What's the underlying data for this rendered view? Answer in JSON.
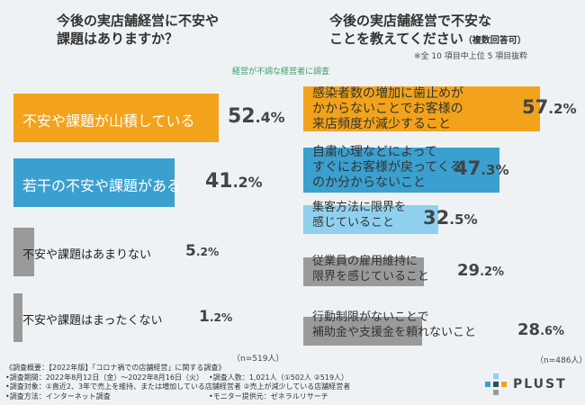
{
  "left": {
    "title_line1": "今後の実店舗経営に不安や",
    "title_line2": "課題はありますか？",
    "filter_note": "経営が不調な経営者に調査",
    "n_label": "（n=519人）"
  },
  "right": {
    "title_line1": "今後の実店舗経営で不安な",
    "title_line2": "ことを教えてください",
    "multi_note": "（複数回答可）",
    "sub_note": "※全 10 項目中上位 5 項目抜粋",
    "n_label": "（n=486人）"
  },
  "chart_data": [
    {
      "type": "bar",
      "orientation": "horizontal",
      "title": "今後の実店舗経営に不安や課題はありますか？",
      "unit": "%",
      "categories": [
        "不安や課題が山積している",
        "若干の不安や課題がある",
        "不安や課題はあまりない",
        "不安や課題はまったくない"
      ],
      "values": [
        52.4,
        41.2,
        5.2,
        1.2
      ],
      "value_labels": [
        {
          "int": "52",
          "dec": ".4%"
        },
        {
          "int": "41",
          "dec": ".2%"
        },
        {
          "int": "5",
          "dec": ".2%"
        },
        {
          "int": "1",
          "dec": ".2%"
        }
      ],
      "colors": [
        "#f2a31b",
        "#3aa0cf",
        "#9a9a9a",
        "#9a9a9a"
      ]
    },
    {
      "type": "bar",
      "orientation": "horizontal",
      "title": "今後の実店舗経営で不安なことを教えてください（複数回答可）",
      "unit": "%",
      "categories": [
        [
          "感染者数の増加に歯止めが",
          "かからないことでお客様の",
          "来店頻度が減少すること"
        ],
        [
          "自粛心理などによって",
          "すぐにお客様が戻ってくる",
          "のか分からないこと"
        ],
        [
          "集客方法に限界を",
          "感じていること"
        ],
        [
          "従業員の雇用維持に",
          "限界を感じていること"
        ],
        [
          "行動制限がないことで",
          "補助金や支援金を頼れないこと"
        ]
      ],
      "values": [
        57.2,
        47.3,
        32.5,
        29.2,
        28.6
      ],
      "value_labels": [
        {
          "int": "57",
          "dec": ".2%"
        },
        {
          "int": "47",
          "dec": ".3%"
        },
        {
          "int": "32",
          "dec": ".5%"
        },
        {
          "int": "29",
          "dec": ".2%"
        },
        {
          "int": "28",
          "dec": ".6%"
        }
      ],
      "colors": [
        "#f2a31b",
        "#3aa0cf",
        "#8fd0ef",
        "#9a9a9a",
        "#9a9a9a"
      ]
    }
  ],
  "footer": {
    "line1": "《調査概要：【2022年版】「コロナ禍での店舗経営」に関する調査》",
    "line2": "•調査期間：2022年8月12日（金）〜2022年8月16日（火）",
    "line3": "•調査対象：①直近2、3年で売上を維持、または増加している店舗経営者 ②売上が減少している店舗経営者",
    "line4": "•調査方法：インターネット調査",
    "line5a": "•調査人数：1,021人（①502人 ②519人）",
    "line5b": "•モニター提供元：ゼネラルリサーチ"
  },
  "logo": {
    "text": "PLUST",
    "icon": "plust-logo-icon"
  }
}
